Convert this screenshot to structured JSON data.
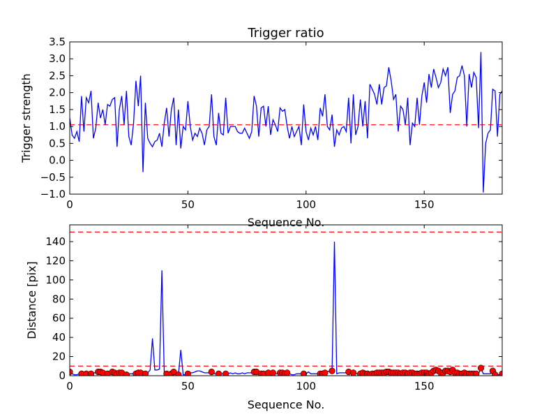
{
  "chart_data": [
    {
      "type": "line",
      "title": "Trigger ratio",
      "xlabel": "Sequence No.",
      "ylabel": "Trigger strength",
      "xlim": [
        0,
        183
      ],
      "ylim": [
        -1.0,
        3.5
      ],
      "xticks": [
        "0",
        "50",
        "100",
        "150"
      ],
      "yticks": [
        "−1.0",
        "−0.5",
        "0.0",
        "0.5",
        "1.0",
        "1.5",
        "2.0",
        "2.5",
        "3.0",
        "3.5"
      ],
      "grid": false,
      "threshold": 1.05,
      "colors": {
        "line": "#0000ff",
        "threshold": "#ff0000"
      },
      "values": [
        1.25,
        0.75,
        0.65,
        0.85,
        0.55,
        1.9,
        0.85,
        1.85,
        1.7,
        2.05,
        0.65,
        0.95,
        1.7,
        1.25,
        1.5,
        1.05,
        1.65,
        1.6,
        1.8,
        1.85,
        0.4,
        1.5,
        1.9,
        1.05,
        2.05,
        0.7,
        0.45,
        1.1,
        2.35,
        1.6,
        2.5,
        -0.35,
        1.7,
        0.65,
        0.5,
        0.4,
        0.55,
        0.6,
        0.8,
        0.4,
        1.1,
        1.55,
        0.7,
        1.5,
        1.85,
        0.45,
        1.5,
        0.35,
        1.0,
        0.9,
        1.75,
        1.0,
        0.6,
        0.8,
        0.7,
        0.95,
        0.8,
        0.45,
        0.9,
        1.0,
        1.95,
        0.7,
        0.45,
        1.4,
        0.8,
        0.75,
        1.85,
        0.8,
        1.0,
        1.0,
        1.0,
        0.85,
        0.8,
        0.8,
        0.95,
        0.8,
        0.65,
        0.85,
        1.9,
        1.6,
        0.7,
        1.55,
        1.6,
        1.0,
        1.6,
        0.75,
        1.2,
        1.05,
        0.85,
        1.55,
        1.45,
        1.5,
        1.0,
        0.65,
        1.0,
        0.7,
        0.85,
        1.0,
        0.45,
        1.65,
        0.85,
        0.6,
        0.95,
        0.75,
        1.0,
        0.6,
        1.55,
        1.3,
        1.95,
        1.0,
        0.9,
        1.35,
        0.4,
        0.9,
        0.75,
        0.95,
        1.0,
        0.85,
        1.85,
        0.5,
        1.95,
        0.75,
        1.0,
        1.8,
        1.0,
        1.75,
        0.65,
        2.25,
        2.1,
        1.95,
        1.65,
        2.25,
        1.65,
        2.15,
        2.2,
        2.75,
        2.35,
        1.8,
        1.95,
        0.85,
        1.6,
        1.5,
        1.05,
        1.85,
        0.45,
        1.1,
        1.0,
        1.85,
        1.05,
        1.9,
        2.3,
        1.7,
        2.55,
        2.15,
        2.7,
        2.45,
        2.15,
        2.3,
        2.7,
        2.5,
        2.75,
        1.4,
        1.95,
        2.05,
        2.45,
        2.5,
        2.8,
        2.5,
        1.0,
        2.55,
        2.15,
        2.6,
        2.45,
        0.95,
        3.2,
        -0.95,
        0.5,
        0.8,
        0.9,
        2.1,
        2.05,
        0.7,
        1.95,
        2.05
      ]
    },
    {
      "type": "line",
      "title": "",
      "xlabel": "Sequence No.",
      "ylabel": "Distance [pix]",
      "xlim": [
        0,
        183
      ],
      "ylim": [
        0,
        157.5
      ],
      "xticks": [
        "0",
        "50",
        "100",
        "150"
      ],
      "yticks": [
        "0",
        "20",
        "40",
        "60",
        "80",
        "100",
        "120",
        "140"
      ],
      "grid": false,
      "thresholds": [
        10,
        150
      ],
      "colors": {
        "line": "#0000ff",
        "threshold": "#ff0000",
        "marker": "#ff0000"
      },
      "values": [
        4,
        2,
        1,
        1,
        2,
        2,
        3,
        2,
        3,
        2,
        3,
        3,
        4,
        4,
        3,
        2,
        2,
        3,
        4,
        3,
        2,
        3,
        3,
        2,
        1,
        2,
        2,
        2,
        2,
        3,
        3,
        2,
        2,
        3,
        6,
        39,
        6,
        6,
        7,
        110,
        2,
        2,
        2,
        2,
        4,
        2,
        1,
        27,
        1,
        1,
        2,
        3,
        3,
        4,
        5,
        5,
        4,
        3,
        3,
        3,
        4,
        2,
        2,
        2,
        2,
        2,
        2,
        2,
        3,
        2,
        3,
        2,
        2,
        3,
        2,
        3,
        3,
        3,
        4,
        4,
        3,
        2,
        2,
        3,
        3,
        2,
        3,
        2,
        2,
        3,
        3,
        2,
        3,
        2,
        1,
        1,
        2,
        2,
        2,
        2,
        2,
        4,
        2,
        2,
        2,
        2,
        2,
        2,
        3,
        4,
        5,
        5,
        140,
        2,
        3,
        3,
        3,
        3,
        4,
        4,
        3,
        2,
        2,
        2,
        3,
        2,
        2,
        1,
        2,
        2,
        3,
        3,
        3,
        3,
        4,
        4,
        3,
        3,
        3,
        3,
        2,
        3,
        3,
        2,
        3,
        3,
        2,
        2,
        2,
        3,
        3,
        3,
        2,
        3,
        5,
        6,
        5,
        3,
        3,
        5,
        5,
        4,
        6,
        3,
        3,
        2,
        2,
        3,
        2,
        2,
        2,
        2,
        2,
        2,
        8,
        2,
        2,
        2,
        2,
        5,
        1,
        1,
        1,
        2
      ],
      "marker_indices": [
        0,
        5,
        7,
        9,
        12,
        13,
        14,
        16,
        18,
        19,
        20,
        21,
        22,
        24,
        28,
        29,
        30,
        32,
        41,
        43,
        44,
        46,
        50,
        60,
        63,
        66,
        78,
        79,
        81,
        82,
        84,
        86,
        89,
        90,
        91,
        92,
        99,
        106,
        107,
        108,
        111,
        118,
        120,
        123,
        124,
        125,
        126,
        127,
        128,
        129,
        130,
        131,
        132,
        133,
        134,
        135,
        136,
        137,
        138,
        139,
        140,
        141,
        142,
        143,
        144,
        145,
        146,
        147,
        148,
        149,
        150,
        151,
        152,
        153,
        154,
        155,
        156,
        157,
        158,
        159,
        160,
        161,
        162,
        163,
        164,
        165,
        166,
        167,
        168,
        169,
        170,
        171,
        172,
        174,
        179,
        180,
        183
      ]
    }
  ]
}
